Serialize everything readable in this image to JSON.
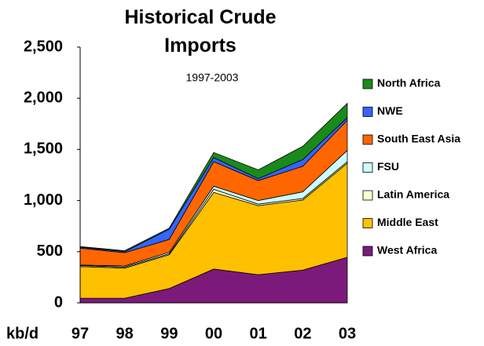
{
  "chart_data": {
    "type": "stacked_area",
    "title": "Historical Crude Imports",
    "subtitle": "1997-2003",
    "x_label": "kb/d",
    "categories": [
      "97",
      "98",
      "99",
      "00",
      "01",
      "02",
      "03"
    ],
    "series": [
      {
        "name": "West Africa",
        "color": "#7b1a7b",
        "values": [
          45,
          45,
          140,
          330,
          275,
          320,
          445
        ]
      },
      {
        "name": "Middle East",
        "color": "#ffc000",
        "values": [
          310,
          295,
          330,
          750,
          675,
          685,
          920
        ]
      },
      {
        "name": "Latin America",
        "color": "#ffffcc",
        "values": [
          10,
          10,
          10,
          30,
          15,
          15,
          15
        ]
      },
      {
        "name": "FSU",
        "color": "#ccffff",
        "values": [
          5,
          10,
          15,
          30,
          35,
          65,
          110
        ]
      },
      {
        "name": "South East Asia",
        "color": "#ff6600",
        "values": [
          165,
          130,
          125,
          240,
          195,
          250,
          295
        ]
      },
      {
        "name": "NWE",
        "color": "#3366ff",
        "values": [
          10,
          10,
          100,
          40,
          20,
          65,
          25
        ]
      },
      {
        "name": "North Africa",
        "color": "#1a8a1a",
        "values": [
          5,
          10,
          10,
          50,
          85,
          130,
          140
        ]
      }
    ],
    "ylim": [
      0,
      2500
    ],
    "yticks": [
      0,
      500,
      {
        "value": 1000,
        "label": "1,000"
      },
      {
        "value": 1500,
        "label": "1,500"
      },
      {
        "value": 2000,
        "label": "2,000"
      },
      {
        "value": 2500,
        "label": "2,500"
      }
    ],
    "legend": "right"
  }
}
